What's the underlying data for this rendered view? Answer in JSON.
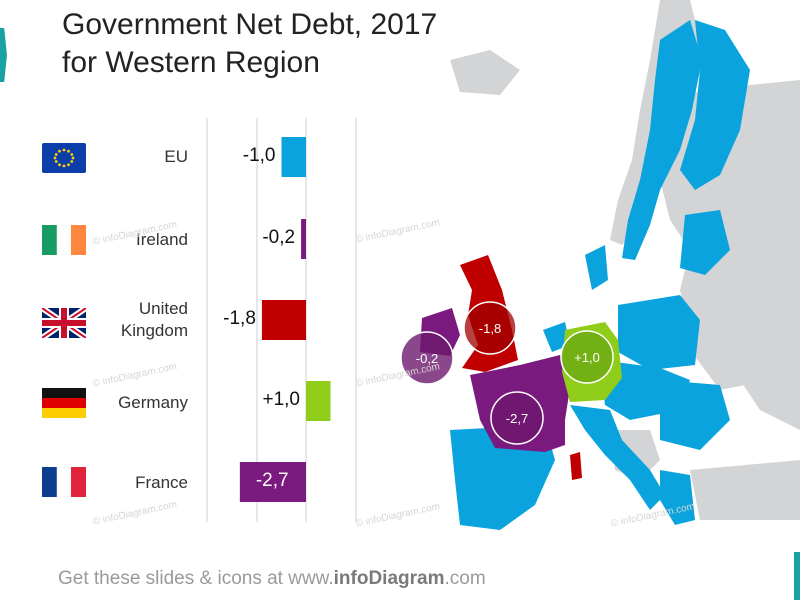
{
  "title_line1": "Government Net Debt, 2017",
  "title_line2": "for Western Region",
  "watermark": "© infoDiagram.com",
  "footer": {
    "prefix": "Get these slides & icons at www.",
    "brand": "infoDiagram",
    "suffix": ".com"
  },
  "colors": {
    "eu": "#0aa3dd",
    "ireland": "#7b1a7e",
    "united_kingdom": "#c00000",
    "germany": "#8fcd1a",
    "france": "#7b1a7e",
    "map_other": "#d2d4d6",
    "map_region": "#0aa3dd"
  },
  "chart_data": {
    "type": "bar",
    "orientation": "horizontal",
    "categories": [
      "EU",
      "Ireland",
      "United Kingdom",
      "Germany",
      "France"
    ],
    "category_lines": [
      [
        "EU"
      ],
      [
        "Ireland"
      ],
      [
        "United",
        "Kingdom"
      ],
      [
        "Germany"
      ],
      [
        "France"
      ]
    ],
    "values": [
      -1.0,
      -0.2,
      -1.8,
      1.0,
      -2.7
    ],
    "value_labels": [
      "-1,0",
      "-0,2",
      "-1,8",
      "+1,0",
      "-2,7"
    ],
    "flag_icons": [
      "eu-flag-icon",
      "ireland-flag-icon",
      "uk-flag-icon",
      "germany-flag-icon",
      "france-flag-icon"
    ],
    "grid": true
  },
  "map": {
    "bubbles": [
      {
        "country": "United Kingdom",
        "label": "-1,8"
      },
      {
        "country": "Ireland",
        "label": "-0,2"
      },
      {
        "country": "Germany",
        "label": "+1,0"
      },
      {
        "country": "France",
        "label": "-2,7"
      }
    ]
  }
}
